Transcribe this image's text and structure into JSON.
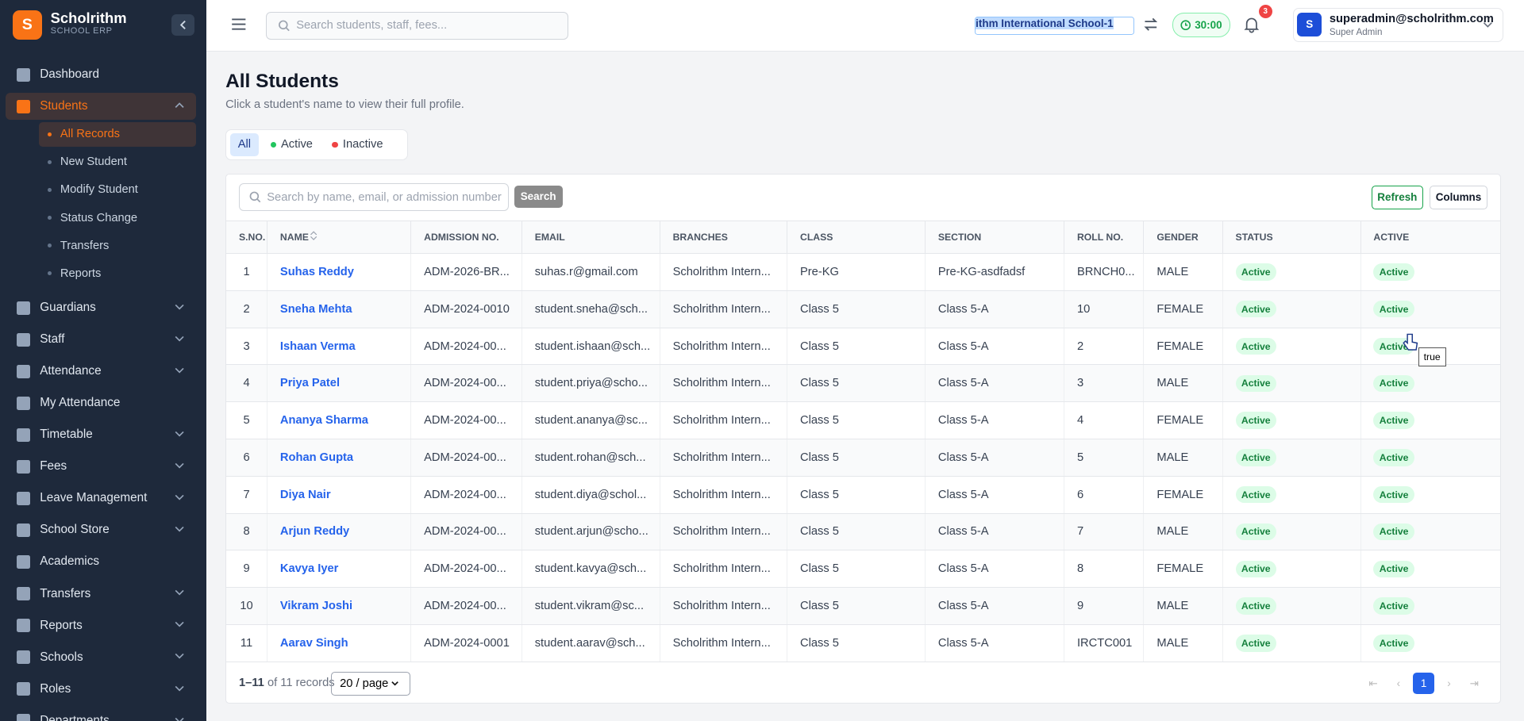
{
  "sidebar": {
    "logo": "S",
    "brand": "Scholrithm",
    "tagline": "SCHOOL ERP",
    "nav": [
      {
        "label": "Dashboard",
        "expandable": false
      },
      {
        "label": "Students",
        "expandable": true,
        "open": true,
        "children": [
          "All Records",
          "New Student",
          "Modify Student",
          "Status Change",
          "Transfers",
          "Reports"
        ]
      },
      {
        "label": "Guardians",
        "expandable": true
      },
      {
        "label": "Staff",
        "expandable": true
      },
      {
        "label": "Attendance",
        "expandable": true
      },
      {
        "label": "My Attendance",
        "expandable": false
      },
      {
        "label": "Timetable",
        "expandable": true
      },
      {
        "label": "Fees",
        "expandable": true
      },
      {
        "label": "Leave Management",
        "expandable": true
      },
      {
        "label": "School Store",
        "expandable": true
      },
      {
        "label": "Academics",
        "expandable": false
      },
      {
        "label": "Transfers",
        "expandable": true
      },
      {
        "label": "Reports",
        "expandable": true
      },
      {
        "label": "Schools",
        "expandable": true
      },
      {
        "label": "Roles",
        "expandable": true
      },
      {
        "label": "Departments",
        "expandable": true
      }
    ]
  },
  "header": {
    "search_placeholder": "Search students, staff, fees...",
    "school": "ithm International School-1",
    "timer": "30:00",
    "notifications": "3",
    "user": {
      "avatar": "S",
      "email": "superadmin@scholrithm.com",
      "role": "Super Admin"
    }
  },
  "page": {
    "title": "All Students",
    "subtitle": "Click a student's name to view their full profile.",
    "filters": [
      "All",
      "Active",
      "Inactive"
    ],
    "table_search_placeholder": "Search by name, email, or admission number",
    "search_button": "Search",
    "actions": [
      "Refresh",
      "Columns"
    ]
  },
  "table": {
    "columns": [
      "S.NO.",
      "NAME",
      "ADMISSION NO.",
      "EMAIL",
      "BRANCHES",
      "CLASS",
      "SECTION",
      "ROLL NO.",
      "GENDER",
      "STATUS",
      "ACTIVE"
    ],
    "rows": [
      [
        "1",
        "Suhas Reddy",
        "ADM-2026-BR...",
        "suhas.r@gmail.com",
        "Scholrithm Intern...",
        "Pre-KG",
        "Pre-KG-asdfadsf",
        "BRNCH0...",
        "MALE",
        "Active",
        "Active"
      ],
      [
        "2",
        "Sneha Mehta",
        "ADM-2024-0010",
        "student.sneha@sch...",
        "Scholrithm Intern...",
        "Class 5",
        "Class 5-A",
        "10",
        "FEMALE",
        "Active",
        "Active"
      ],
      [
        "3",
        "Ishaan Verma",
        "ADM-2024-00...",
        "student.ishaan@sch...",
        "Scholrithm Intern...",
        "Class 5",
        "Class 5-A",
        "2",
        "FEMALE",
        "Active",
        "Active"
      ],
      [
        "4",
        "Priya Patel",
        "ADM-2024-00...",
        "student.priya@scho...",
        "Scholrithm Intern...",
        "Class 5",
        "Class 5-A",
        "3",
        "MALE",
        "Active",
        "Active"
      ],
      [
        "5",
        "Ananya Sharma",
        "ADM-2024-00...",
        "student.ananya@sc...",
        "Scholrithm Intern...",
        "Class 5",
        "Class 5-A",
        "4",
        "FEMALE",
        "Active",
        "Active"
      ],
      [
        "6",
        "Rohan Gupta",
        "ADM-2024-00...",
        "student.rohan@sch...",
        "Scholrithm Intern...",
        "Class 5",
        "Class 5-A",
        "5",
        "MALE",
        "Active",
        "Active"
      ],
      [
        "7",
        "Diya Nair",
        "ADM-2024-00...",
        "student.diya@schol...",
        "Scholrithm Intern...",
        "Class 5",
        "Class 5-A",
        "6",
        "FEMALE",
        "Active",
        "Active"
      ],
      [
        "8",
        "Arjun Reddy",
        "ADM-2024-00...",
        "student.arjun@scho...",
        "Scholrithm Intern...",
        "Class 5",
        "Class 5-A",
        "7",
        "MALE",
        "Active",
        "Active"
      ],
      [
        "9",
        "Kavya Iyer",
        "ADM-2024-00...",
        "student.kavya@sch...",
        "Scholrithm Intern...",
        "Class 5",
        "Class 5-A",
        "8",
        "FEMALE",
        "Active",
        "Active"
      ],
      [
        "10",
        "Vikram Joshi",
        "ADM-2024-00...",
        "student.vikram@sc...",
        "Scholrithm Intern...",
        "Class 5",
        "Class 5-A",
        "9",
        "MALE",
        "Active",
        "Active"
      ],
      [
        "11",
        "Aarav Singh",
        "ADM-2024-0001",
        "student.aarav@sch...",
        "Scholrithm Intern...",
        "Class 5",
        "Class 5-A",
        "IRCTC001",
        "MALE",
        "Active",
        "Active"
      ]
    ]
  },
  "tooltip": "true",
  "footer": {
    "range": "1–11",
    "total": "of 11 records",
    "page_size": "20 / page",
    "current_page": "1"
  }
}
